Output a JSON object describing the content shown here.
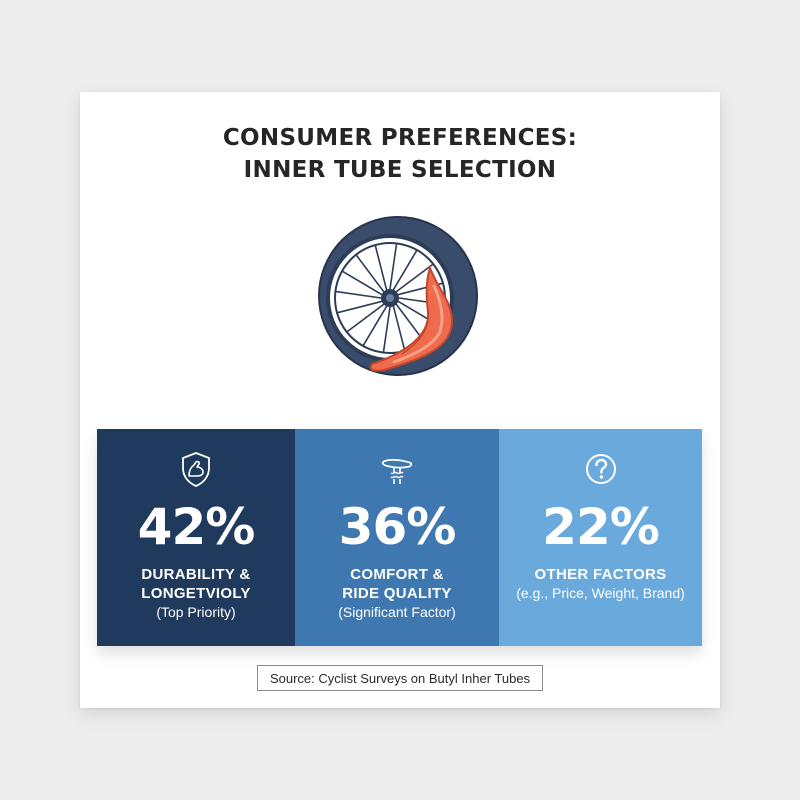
{
  "title": {
    "line1": "CONSUMER PREFERENCES:",
    "line2": "INNER TUBE SELECTION"
  },
  "chart_data": {
    "type": "table",
    "title": "CONSUMER PREFERENCES: INNER TUBE SELECTION",
    "categories": [
      "DURABILITY & LONGETVIOLY",
      "COMFORT & RIDE QUALITY",
      "OTHER FACTORS"
    ],
    "values": [
      42,
      36,
      22
    ],
    "unit": "%"
  },
  "panels": [
    {
      "value": "42%",
      "label_lines": [
        "DURABILITY &",
        "LONGETVIOLY"
      ],
      "sublabel": "(Top Priority)",
      "icon": "shield-flexed-arm-icon",
      "color": "#1f3a5c"
    },
    {
      "value": "36%",
      "label_lines": [
        "COMFORT &",
        "RIDE QUALITY"
      ],
      "sublabel": "(Significant Factor)",
      "icon": "bicycle-saddle-icon",
      "color": "#3f78b0"
    },
    {
      "value": "22%",
      "label_lines": [
        "OTHER FACTORS"
      ],
      "sublabel": "(e.g., Price, Weight, Brand)",
      "icon": "question-mark-icon",
      "color": "#6aa9dc"
    }
  ],
  "illustration": {
    "icon": "bicycle-wheel-inner-tube-icon",
    "colors": {
      "tire": "#3a4c6b",
      "tube": "#ee6b4d"
    }
  },
  "source": "Source: Cyclist Surveys on Butyl Inher Tubes"
}
